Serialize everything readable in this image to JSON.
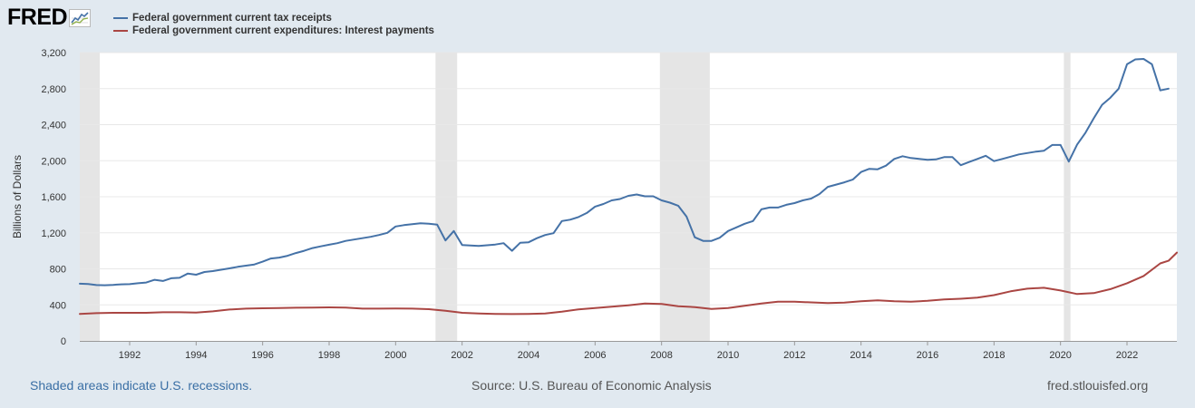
{
  "logo": {
    "text": "FRED",
    "mark_icon": "fred-graph-icon"
  },
  "colors": {
    "background": "#e1e9f0",
    "plot_background": "#ffffff",
    "recession_shade": "#e5e5e5",
    "gridline": "#e8e8e8",
    "series_tax": "#4572a7",
    "series_interest": "#aa4643"
  },
  "footer": {
    "recession_note": "Shaded areas indicate U.S. recessions.",
    "source": "Source: U.S. Bureau of Economic Analysis",
    "site": "fred.stlouisfed.org"
  },
  "chart_data": {
    "type": "line",
    "title": "",
    "xlabel": "",
    "ylabel": "Billions of Dollars",
    "xlim": [
      1990.5,
      2023.5
    ],
    "ylim": [
      0,
      3200
    ],
    "yticks": [
      0,
      400,
      800,
      1200,
      1600,
      2000,
      2400,
      2800,
      3200
    ],
    "ytick_labels": [
      "0",
      "400",
      "800",
      "1,200",
      "1,600",
      "2,000",
      "2,400",
      "2,800",
      "3,200"
    ],
    "xticks": [
      1992,
      1994,
      1996,
      1998,
      2000,
      2002,
      2004,
      2006,
      2008,
      2010,
      2012,
      2014,
      2016,
      2018,
      2020,
      2022
    ],
    "xtick_labels": [
      "1992",
      "1994",
      "1996",
      "1998",
      "2000",
      "2002",
      "2004",
      "2006",
      "2008",
      "2010",
      "2012",
      "2014",
      "2016",
      "2018",
      "2020",
      "2022"
    ],
    "grid": true,
    "legend_position": "top-left",
    "recessions": [
      [
        1990.5,
        1991.1
      ],
      [
        2001.2,
        2001.85
      ],
      [
        2007.95,
        2009.45
      ],
      [
        2020.1,
        2020.3
      ]
    ],
    "series": [
      {
        "name": "Federal government current tax receipts",
        "color": "#4572a7",
        "points": [
          [
            1990.5,
            635
          ],
          [
            1990.75,
            632
          ],
          [
            1991.0,
            620
          ],
          [
            1991.25,
            618
          ],
          [
            1991.5,
            622
          ],
          [
            1991.75,
            628
          ],
          [
            1992.0,
            630
          ],
          [
            1992.25,
            640
          ],
          [
            1992.5,
            648
          ],
          [
            1992.75,
            678
          ],
          [
            1993.0,
            665
          ],
          [
            1993.25,
            695
          ],
          [
            1993.5,
            700
          ],
          [
            1993.75,
            748
          ],
          [
            1994.0,
            735
          ],
          [
            1994.25,
            765
          ],
          [
            1994.5,
            775
          ],
          [
            1994.75,
            790
          ],
          [
            1995.0,
            805
          ],
          [
            1995.25,
            822
          ],
          [
            1995.5,
            835
          ],
          [
            1995.75,
            848
          ],
          [
            1996.0,
            880
          ],
          [
            1996.25,
            915
          ],
          [
            1996.5,
            925
          ],
          [
            1996.75,
            945
          ],
          [
            1997.0,
            975
          ],
          [
            1997.25,
            1000
          ],
          [
            1997.5,
            1030
          ],
          [
            1997.75,
            1050
          ],
          [
            1998.0,
            1068
          ],
          [
            1998.25,
            1085
          ],
          [
            1998.5,
            1110
          ],
          [
            1998.75,
            1125
          ],
          [
            1999.0,
            1140
          ],
          [
            1999.25,
            1155
          ],
          [
            1999.5,
            1175
          ],
          [
            1999.75,
            1200
          ],
          [
            2000.0,
            1270
          ],
          [
            2000.25,
            1285
          ],
          [
            2000.5,
            1295
          ],
          [
            2000.75,
            1305
          ],
          [
            2001.0,
            1300
          ],
          [
            2001.25,
            1290
          ],
          [
            2001.5,
            1115
          ],
          [
            2001.75,
            1220
          ],
          [
            2002.0,
            1065
          ],
          [
            2002.25,
            1060
          ],
          [
            2002.5,
            1055
          ],
          [
            2002.75,
            1062
          ],
          [
            2003.0,
            1070
          ],
          [
            2003.25,
            1085
          ],
          [
            2003.5,
            1000
          ],
          [
            2003.75,
            1090
          ],
          [
            2004.0,
            1095
          ],
          [
            2004.25,
            1140
          ],
          [
            2004.5,
            1175
          ],
          [
            2004.75,
            1195
          ],
          [
            2005.0,
            1330
          ],
          [
            2005.25,
            1345
          ],
          [
            2005.5,
            1375
          ],
          [
            2005.75,
            1420
          ],
          [
            2006.0,
            1490
          ],
          [
            2006.25,
            1520
          ],
          [
            2006.5,
            1560
          ],
          [
            2006.75,
            1575
          ],
          [
            2007.0,
            1610
          ],
          [
            2007.25,
            1625
          ],
          [
            2007.5,
            1605
          ],
          [
            2007.75,
            1605
          ],
          [
            2008.0,
            1560
          ],
          [
            2008.25,
            1535
          ],
          [
            2008.5,
            1500
          ],
          [
            2008.75,
            1380
          ],
          [
            2009.0,
            1150
          ],
          [
            2009.25,
            1110
          ],
          [
            2009.5,
            1110
          ],
          [
            2009.75,
            1145
          ],
          [
            2010.0,
            1220
          ],
          [
            2010.25,
            1260
          ],
          [
            2010.5,
            1300
          ],
          [
            2010.75,
            1330
          ],
          [
            2011.0,
            1460
          ],
          [
            2011.25,
            1480
          ],
          [
            2011.5,
            1480
          ],
          [
            2011.75,
            1510
          ],
          [
            2012.0,
            1530
          ],
          [
            2012.25,
            1560
          ],
          [
            2012.5,
            1580
          ],
          [
            2012.75,
            1630
          ],
          [
            2013.0,
            1710
          ],
          [
            2013.25,
            1735
          ],
          [
            2013.5,
            1760
          ],
          [
            2013.75,
            1790
          ],
          [
            2014.0,
            1875
          ],
          [
            2014.25,
            1910
          ],
          [
            2014.5,
            1905
          ],
          [
            2014.75,
            1945
          ],
          [
            2015.0,
            2020
          ],
          [
            2015.25,
            2050
          ],
          [
            2015.5,
            2030
          ],
          [
            2015.75,
            2020
          ],
          [
            2016.0,
            2010
          ],
          [
            2016.25,
            2015
          ],
          [
            2016.5,
            2040
          ],
          [
            2016.75,
            2040
          ],
          [
            2017.0,
            1950
          ],
          [
            2017.25,
            1985
          ],
          [
            2017.5,
            2020
          ],
          [
            2017.75,
            2055
          ],
          [
            2018.0,
            1995
          ],
          [
            2018.25,
            2020
          ],
          [
            2018.5,
            2045
          ],
          [
            2018.75,
            2070
          ],
          [
            2019.0,
            2085
          ],
          [
            2019.25,
            2100
          ],
          [
            2019.5,
            2110
          ],
          [
            2019.75,
            2175
          ],
          [
            2020.0,
            2175
          ],
          [
            2020.25,
            1990
          ],
          [
            2020.5,
            2180
          ],
          [
            2020.75,
            2310
          ],
          [
            2021.0,
            2470
          ],
          [
            2021.25,
            2620
          ],
          [
            2021.5,
            2700
          ],
          [
            2021.75,
            2800
          ],
          [
            2022.0,
            3070
          ],
          [
            2022.25,
            3125
          ],
          [
            2022.5,
            3130
          ],
          [
            2022.75,
            3070
          ],
          [
            2023.0,
            2780
          ],
          [
            2023.25,
            2800
          ]
        ]
      },
      {
        "name": "Federal government current expenditures: Interest payments",
        "color": "#aa4643",
        "points": [
          [
            1990.5,
            300
          ],
          [
            1991.0,
            308
          ],
          [
            1991.5,
            312
          ],
          [
            1992.0,
            312
          ],
          [
            1992.5,
            312
          ],
          [
            1993.0,
            318
          ],
          [
            1993.5,
            318
          ],
          [
            1994.0,
            315
          ],
          [
            1994.5,
            328
          ],
          [
            1995.0,
            348
          ],
          [
            1995.5,
            358
          ],
          [
            1996.0,
            362
          ],
          [
            1996.5,
            364
          ],
          [
            1997.0,
            368
          ],
          [
            1997.5,
            370
          ],
          [
            1998.0,
            372
          ],
          [
            1998.5,
            370
          ],
          [
            1999.0,
            358
          ],
          [
            1999.5,
            358
          ],
          [
            2000.0,
            360
          ],
          [
            2000.5,
            358
          ],
          [
            2001.0,
            352
          ],
          [
            2001.5,
            335
          ],
          [
            2002.0,
            312
          ],
          [
            2002.5,
            305
          ],
          [
            2003.0,
            300
          ],
          [
            2003.5,
            298
          ],
          [
            2004.0,
            300
          ],
          [
            2004.5,
            305
          ],
          [
            2005.0,
            325
          ],
          [
            2005.5,
            350
          ],
          [
            2006.0,
            365
          ],
          [
            2006.5,
            380
          ],
          [
            2007.0,
            395
          ],
          [
            2007.5,
            415
          ],
          [
            2008.0,
            410
          ],
          [
            2008.5,
            385
          ],
          [
            2009.0,
            375
          ],
          [
            2009.5,
            355
          ],
          [
            2010.0,
            365
          ],
          [
            2010.5,
            390
          ],
          [
            2011.0,
            415
          ],
          [
            2011.5,
            435
          ],
          [
            2012.0,
            435
          ],
          [
            2012.5,
            428
          ],
          [
            2013.0,
            420
          ],
          [
            2013.5,
            425
          ],
          [
            2014.0,
            440
          ],
          [
            2014.5,
            450
          ],
          [
            2015.0,
            440
          ],
          [
            2015.5,
            435
          ],
          [
            2016.0,
            445
          ],
          [
            2016.5,
            460
          ],
          [
            2017.0,
            468
          ],
          [
            2017.5,
            480
          ],
          [
            2018.0,
            508
          ],
          [
            2018.5,
            550
          ],
          [
            2019.0,
            580
          ],
          [
            2019.5,
            590
          ],
          [
            2020.0,
            560
          ],
          [
            2020.5,
            520
          ],
          [
            2021.0,
            530
          ],
          [
            2021.5,
            575
          ],
          [
            2022.0,
            640
          ],
          [
            2022.5,
            720
          ],
          [
            2023.0,
            860
          ],
          [
            2023.25,
            890
          ],
          [
            2023.5,
            980
          ]
        ]
      }
    ]
  }
}
